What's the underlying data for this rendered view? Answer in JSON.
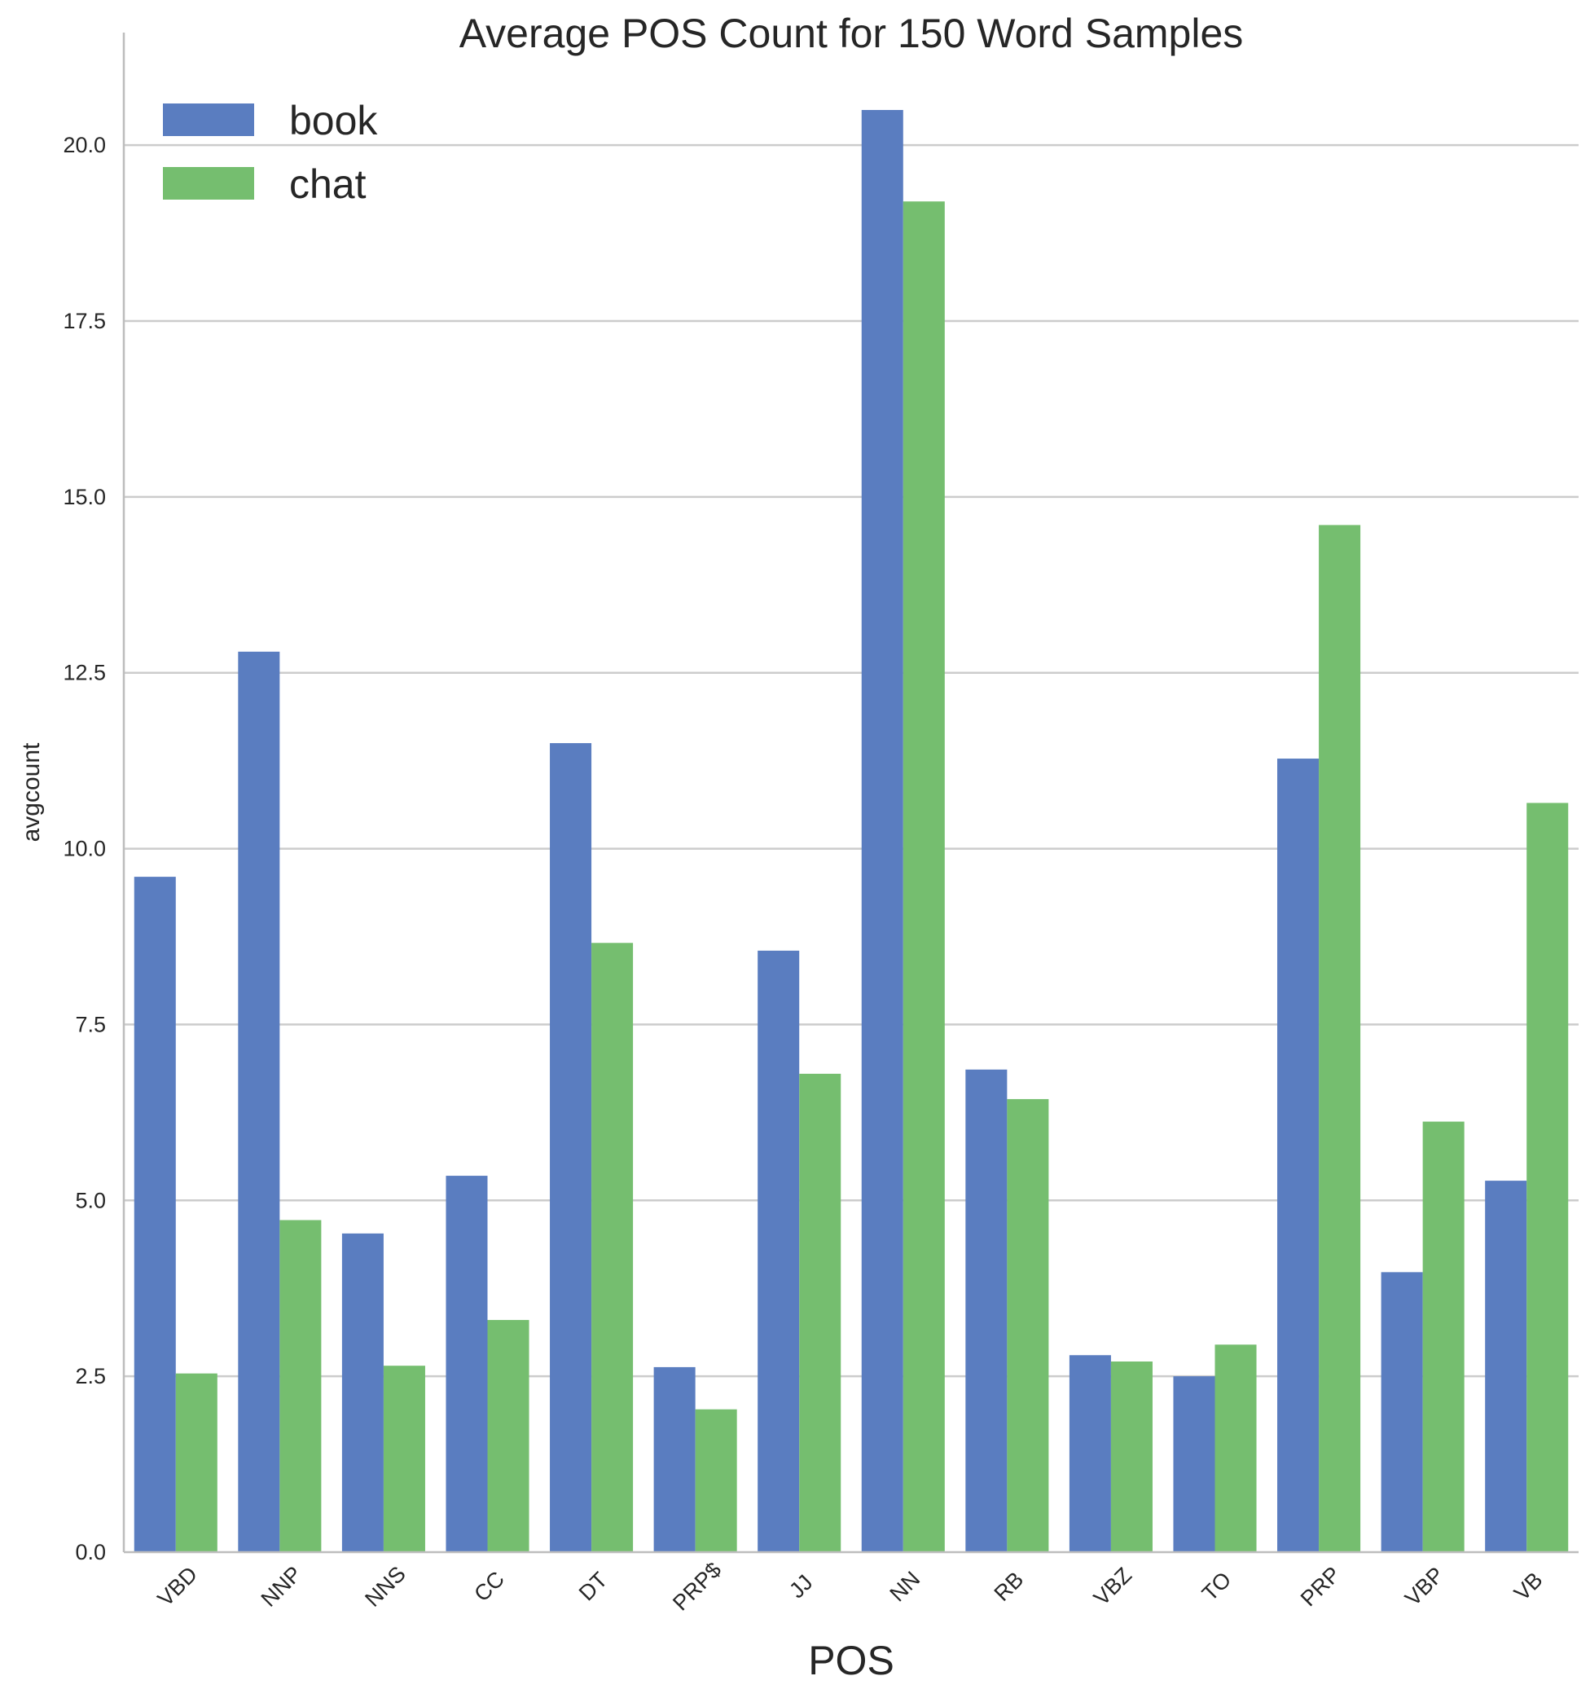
{
  "chart_data": {
    "type": "bar",
    "title": "Average POS Count for 150 Word Samples",
    "xlabel": "POS",
    "ylabel": "avgcount",
    "categories": [
      "VBD",
      "NNP",
      "NNS",
      "CC",
      "DT",
      "PRP$",
      "JJ",
      "NN",
      "RB",
      "VBZ",
      "TO",
      "PRP",
      "VBP",
      "VB"
    ],
    "series": [
      {
        "name": "book",
        "color": "#5a7dc0",
        "values": [
          9.6,
          12.8,
          4.53,
          5.35,
          11.5,
          2.63,
          8.55,
          20.5,
          6.86,
          2.8,
          2.5,
          11.28,
          3.98,
          5.28
        ]
      },
      {
        "name": "chat",
        "color": "#75be6f",
        "values": [
          2.54,
          4.72,
          2.65,
          3.3,
          8.66,
          2.03,
          6.8,
          19.2,
          6.44,
          2.71,
          2.95,
          14.6,
          6.12,
          10.65
        ]
      }
    ],
    "ylim": [
      0,
      21.6
    ],
    "yticks": [
      "0.0",
      "2.5",
      "5.0",
      "7.5",
      "10.0",
      "12.5",
      "15.0",
      "17.5",
      "20.0"
    ],
    "grid": true,
    "legend_position": "top-left"
  }
}
